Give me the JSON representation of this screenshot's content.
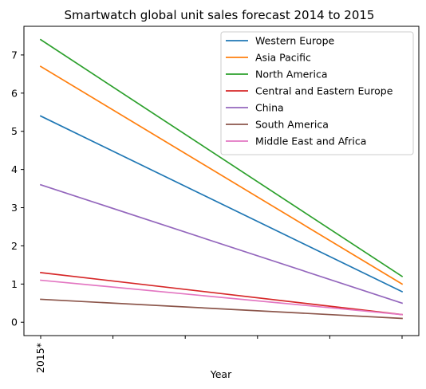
{
  "chart_data": {
    "type": "line",
    "title": "Smartwatch global unit sales forecast 2014 to 2015",
    "xlabel": "Year",
    "ylabel": "",
    "x_tick_labels": [
      "2015*",
      "",
      "",
      "",
      "",
      ""
    ],
    "x": [
      0,
      1
    ],
    "ylim": [
      -0.35,
      7.75
    ],
    "y_ticks": [
      0,
      1,
      2,
      3,
      4,
      5,
      6,
      7
    ],
    "grid": false,
    "legend_position": "top-right",
    "series": [
      {
        "name": "Western Europe",
        "color": "#1f77b4",
        "values": [
          5.4,
          0.8
        ]
      },
      {
        "name": "Asia Pacific",
        "color": "#ff7f0e",
        "values": [
          6.7,
          1.0
        ]
      },
      {
        "name": "North America",
        "color": "#2ca02c",
        "values": [
          7.4,
          1.2
        ]
      },
      {
        "name": "Central and Eastern Europe",
        "color": "#d62728",
        "values": [
          1.3,
          0.2
        ]
      },
      {
        "name": "China",
        "color": "#9467bd",
        "values": [
          3.6,
          0.5
        ]
      },
      {
        "name": "South America",
        "color": "#8c564b",
        "values": [
          0.6,
          0.1
        ]
      },
      {
        "name": "Middle East and Africa",
        "color": "#e377c2",
        "values": [
          1.1,
          0.2
        ]
      }
    ]
  }
}
